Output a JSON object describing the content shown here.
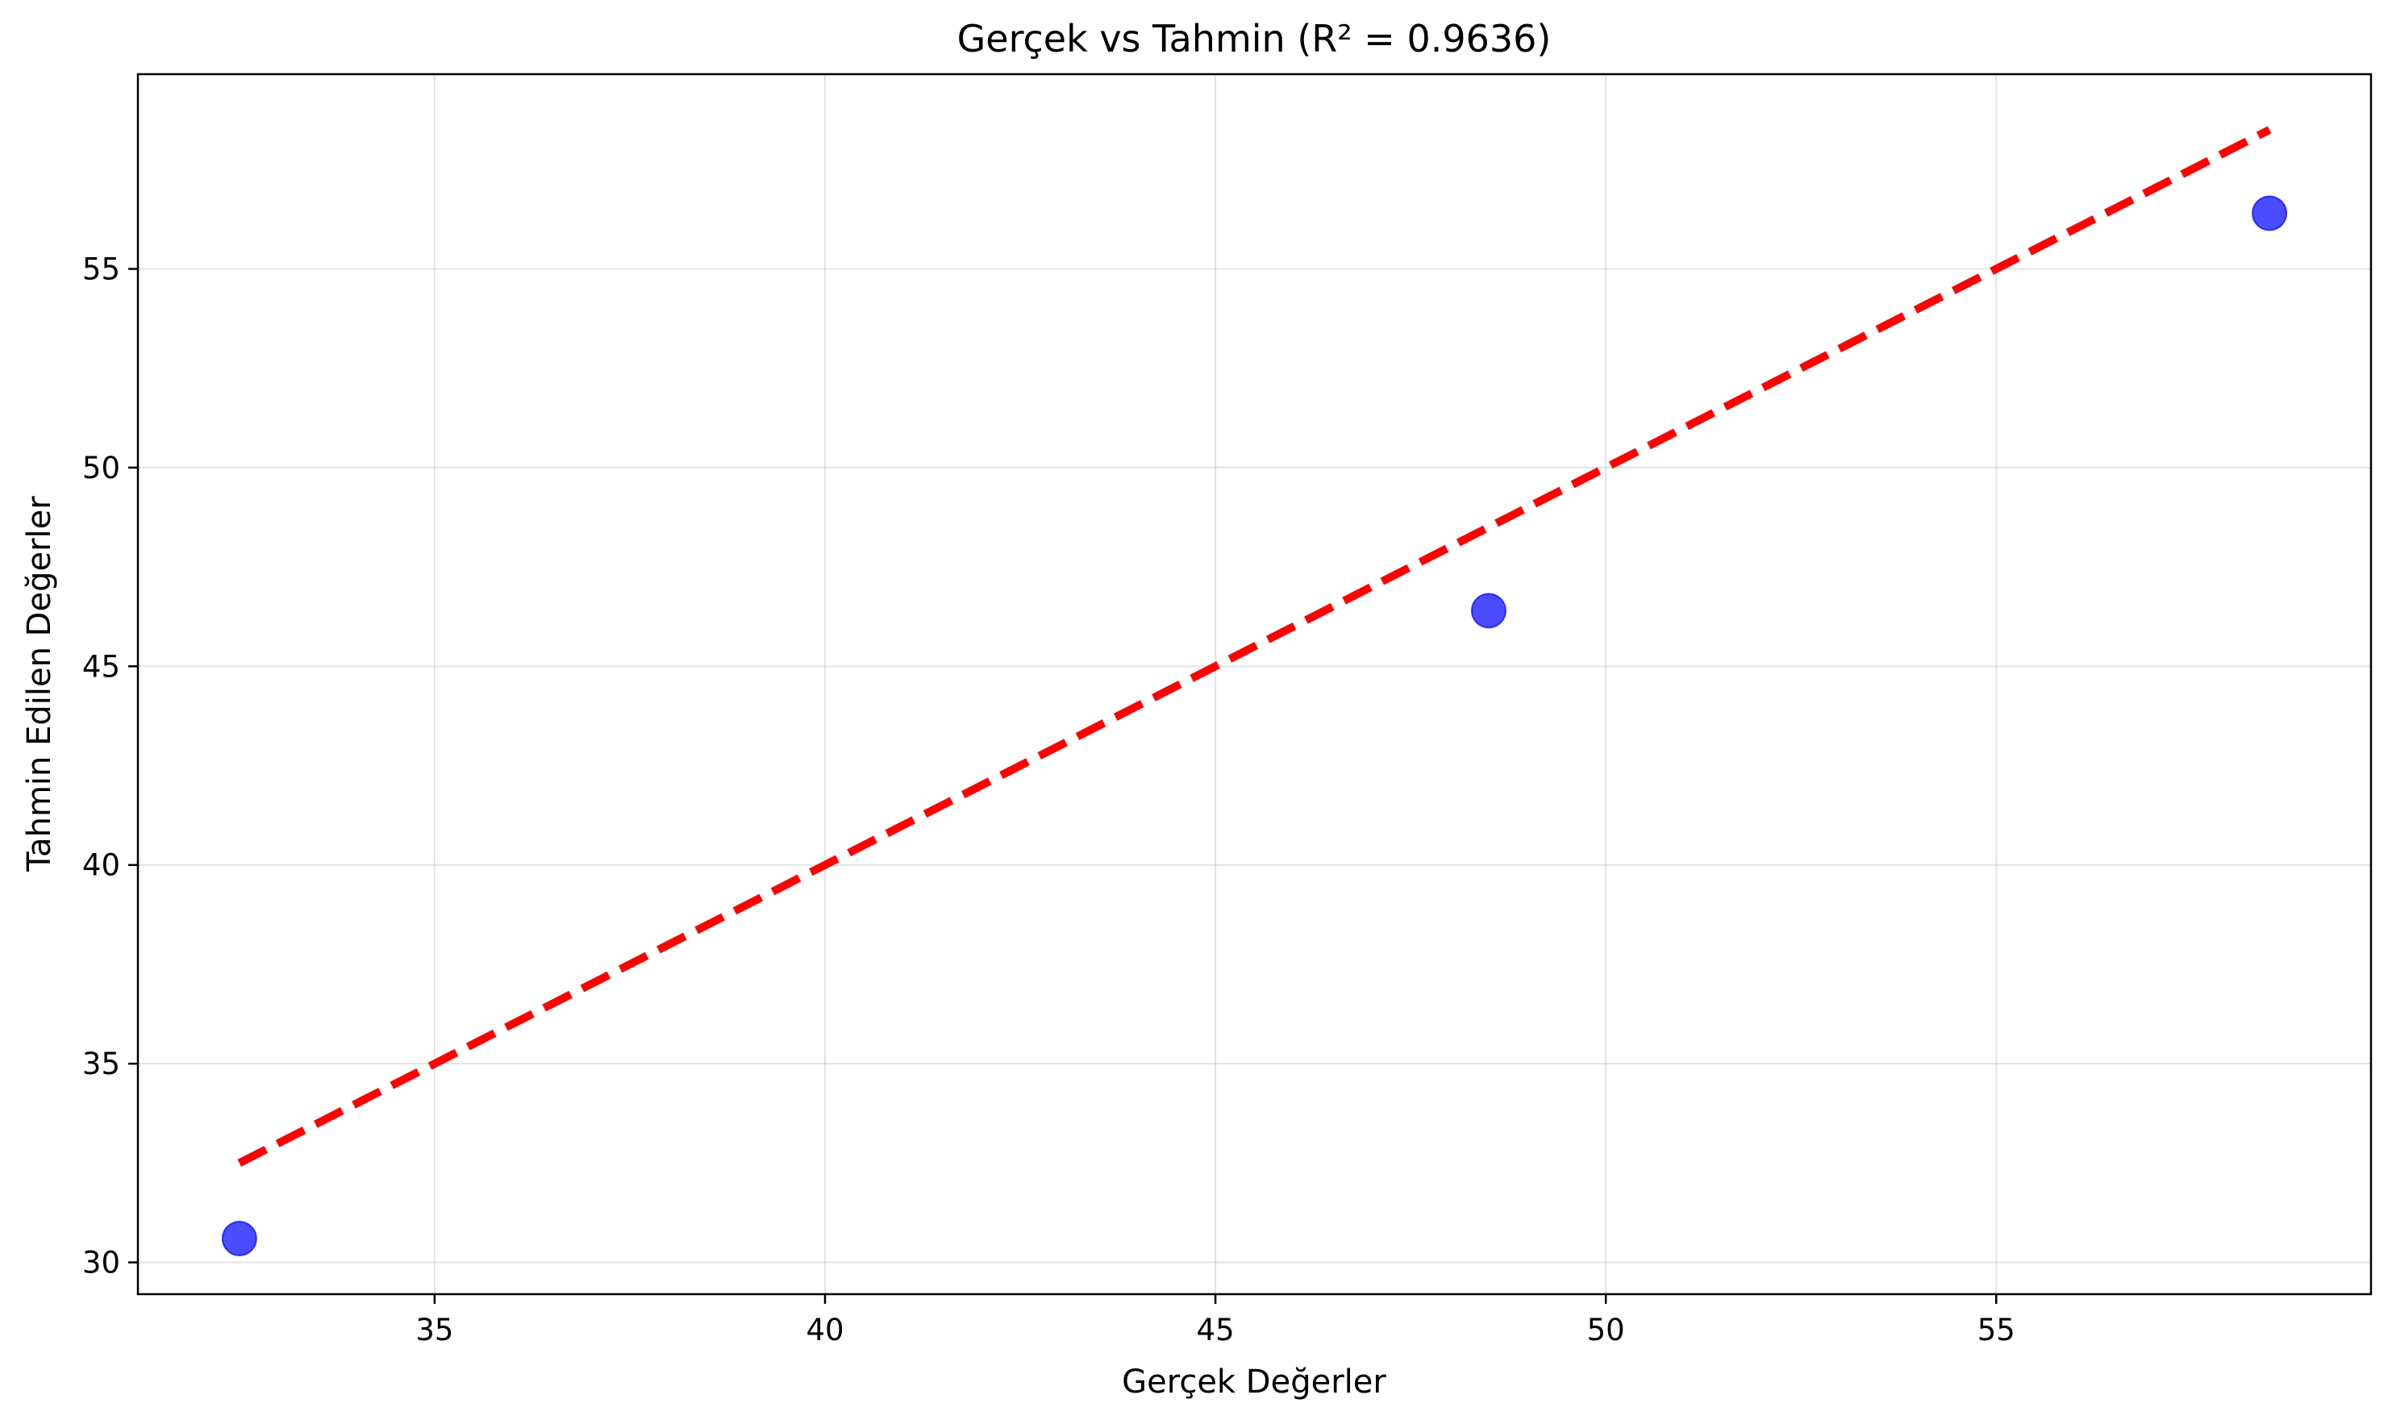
{
  "chart_data": {
    "type": "scatter",
    "title": "Gerçek vs Tahmin (R² = 0.9636)",
    "xlabel": "Gerçek Değerler",
    "ylabel": "Tahmin Edilen Değerler",
    "xlim": [
      31.2,
      59.8
    ],
    "ylim": [
      29.2,
      59.9
    ],
    "x_ticks": [
      35,
      40,
      45,
      50,
      55
    ],
    "y_ticks": [
      30,
      35,
      40,
      45,
      50,
      55
    ],
    "x_tick_labels": [
      "35",
      "40",
      "45",
      "50",
      "55"
    ],
    "y_tick_labels": [
      "30",
      "35",
      "40",
      "45",
      "50",
      "55"
    ],
    "grid": true,
    "series": [
      {
        "kind": "scatter",
        "color": "#0000ff",
        "opacity": 0.7,
        "points": [
          {
            "x": 32.5,
            "y": 30.6
          },
          {
            "x": 48.5,
            "y": 46.4
          },
          {
            "x": 58.5,
            "y": 56.4
          }
        ]
      },
      {
        "kind": "reference-line",
        "color": "#ff0000",
        "style": "dashed",
        "points": [
          {
            "x": 32.5,
            "y": 32.5
          },
          {
            "x": 58.5,
            "y": 58.5
          }
        ]
      }
    ]
  }
}
